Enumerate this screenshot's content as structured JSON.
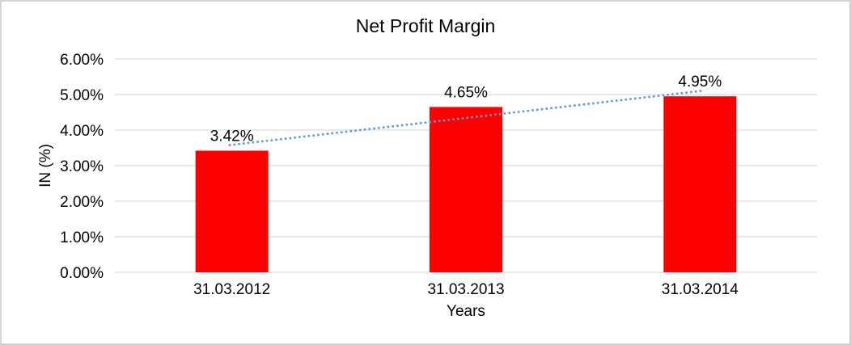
{
  "window": {
    "background": "#FFFFFF",
    "border_color": "#D3D3D3"
  },
  "chart_data": {
    "type": "bar",
    "title": "Net Profit Margin",
    "xlabel": "Years",
    "ylabel": "IN (%)",
    "categories": [
      "31.03.2012",
      "31.03.2013",
      "31.03.2014"
    ],
    "values": [
      3.42,
      4.65,
      4.95
    ],
    "data_labels": [
      "3.42%",
      "4.65%",
      "4.95%"
    ],
    "ylim": [
      0,
      6
    ],
    "yticks": [
      {
        "value": 0,
        "label": "0.00%"
      },
      {
        "value": 1,
        "label": "1.00%"
      },
      {
        "value": 2,
        "label": "2.00%"
      },
      {
        "value": 3,
        "label": "3.00%"
      },
      {
        "value": 4,
        "label": "4.00%"
      },
      {
        "value": 5,
        "label": "5.00%"
      },
      {
        "value": 6,
        "label": "6.00%"
      }
    ],
    "grid": true,
    "legend": "none",
    "bar_color": "#FF0000",
    "gridline_color": "#D9D9D9",
    "text_color": "#000000",
    "trendline": {
      "type": "linear",
      "style": "dotted",
      "color": "#5B9BD5",
      "points": [
        {
          "x_index": 0,
          "value": 3.575
        },
        {
          "x_index": 2,
          "value": 5.105
        }
      ]
    }
  }
}
